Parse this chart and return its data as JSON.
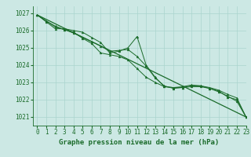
{
  "title": "Graphe pression niveau de la mer (hPa)",
  "bg_color": "#cce8e4",
  "grid_color": "#aad4ce",
  "line_color": "#1a6b2a",
  "xlim": [
    -0.5,
    23
  ],
  "ylim": [
    1020.5,
    1027.4
  ],
  "yticks": [
    1021,
    1022,
    1023,
    1024,
    1025,
    1026,
    1027
  ],
  "xticks": [
    0,
    1,
    2,
    3,
    4,
    5,
    6,
    7,
    8,
    9,
    10,
    11,
    12,
    13,
    14,
    15,
    16,
    17,
    18,
    19,
    20,
    21,
    22,
    23
  ],
  "series_main": {
    "x": [
      0,
      1,
      2,
      3,
      4,
      5,
      6,
      7,
      8,
      9,
      10,
      11,
      12,
      13,
      14,
      15,
      16,
      17,
      18,
      19,
      20,
      21,
      22,
      23
    ],
    "y": [
      1026.9,
      1026.5,
      1026.1,
      1026.1,
      1026.0,
      1025.9,
      1025.6,
      1025.3,
      1024.7,
      1024.8,
      1025.0,
      1025.65,
      1024.0,
      1023.3,
      1022.75,
      1022.7,
      1022.75,
      1022.85,
      1022.8,
      1022.7,
      1022.55,
      1022.3,
      1022.1,
      1021.0
    ]
  },
  "series_smooth": {
    "x": [
      0,
      1,
      2,
      3,
      4,
      5,
      6,
      7,
      8,
      9,
      10,
      11,
      12,
      13,
      14,
      15,
      16,
      17,
      18,
      19,
      20,
      21,
      22,
      23
    ],
    "y": [
      1026.9,
      1026.55,
      1026.2,
      1026.05,
      1025.85,
      1025.6,
      1025.35,
      1025.1,
      1024.8,
      1024.85,
      1024.9,
      1024.5,
      1023.95,
      1023.25,
      1022.8,
      1022.65,
      1022.7,
      1022.8,
      1022.8,
      1022.65,
      1022.45,
      1022.2,
      1021.9,
      1021.0
    ]
  },
  "series_sparse": {
    "x": [
      0,
      1,
      2,
      3,
      4,
      5,
      6,
      7,
      8,
      9,
      10,
      11,
      12,
      13,
      14,
      15,
      16,
      17,
      18,
      19,
      20,
      21,
      22,
      23
    ],
    "y": [
      1026.9,
      1026.55,
      1026.25,
      1026.05,
      1025.9,
      1025.55,
      1025.25,
      1024.7,
      1024.6,
      1024.5,
      1024.3,
      1023.8,
      1023.3,
      1023.0,
      1022.75,
      1022.7,
      1022.7,
      1022.75,
      1022.75,
      1022.65,
      1022.5,
      1022.15,
      1022.0,
      1021.0
    ]
  },
  "series_linear": {
    "x": [
      0,
      23
    ],
    "y": [
      1026.9,
      1021.0
    ]
  },
  "tick_fontsize": 5.5,
  "xlabel_fontsize": 6.5
}
